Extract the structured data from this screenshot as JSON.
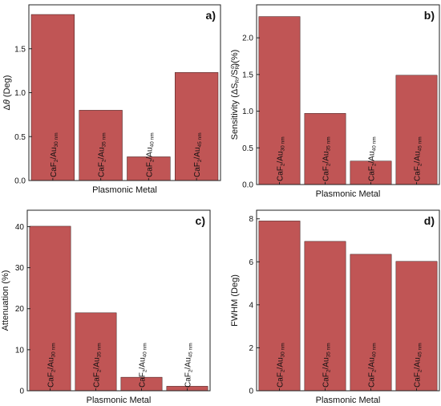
{
  "chart_data": [
    {
      "panel": "a)",
      "type": "bar",
      "categories": [
        "CaF₂/Au 30 nm",
        "CaF₂/Au 35 nm",
        "CaF₂/Au 40 nm",
        "CaF₂/Au 45 nm"
      ],
      "category_parts": [
        {
          "main": "CaF",
          "sub1": "2",
          "mid": "/Au",
          "sub2": "30 nm"
        },
        {
          "main": "CaF",
          "sub1": "2",
          "mid": "/Au",
          "sub2": "35 nm"
        },
        {
          "main": "CaF",
          "sub1": "2",
          "mid": "/Au",
          "sub2": "40 nm"
        },
        {
          "main": "CaF",
          "sub1": "2",
          "mid": "/Au",
          "sub2": "45 nm"
        }
      ],
      "values": [
        1.89,
        0.8,
        0.27,
        1.23
      ],
      "xlabel": "Plasmonic Metal",
      "ylabel": "Δθ (Deg)",
      "ylim": [
        0,
        2.0
      ],
      "yticks": [
        0.0,
        0.5,
        1.0,
        1.5
      ],
      "ytick_labels": [
        "0.0",
        "0.5",
        "1.0",
        "1.5"
      ],
      "bar_color": "#c05555",
      "grid": false
    },
    {
      "panel": "b)",
      "type": "bar",
      "categories": [
        "CaF₂/Au 30 nm",
        "CaF₂/Au 35 nm",
        "CaF₂/Au 40 nm",
        "CaF₂/Au 45 nm"
      ],
      "category_parts": [
        {
          "main": "CaF",
          "sub1": "2",
          "mid": "/Au",
          "sub2": "30 nm"
        },
        {
          "main": "CaF",
          "sub1": "2",
          "mid": "/Au",
          "sub2": "35 nm"
        },
        {
          "main": "CaF",
          "sub1": "2",
          "mid": "/Au",
          "sub2": "40 nm"
        },
        {
          "main": "CaF",
          "sub1": "2",
          "mid": "/Au",
          "sub2": "45 nm"
        }
      ],
      "values": [
        2.29,
        0.97,
        0.32,
        1.49
      ],
      "xlabel": "Plasmonic Metal",
      "ylabel": "Sensitivity (ΔS_RI/S_RI^d)(%)",
      "ylim": [
        0,
        2.45
      ],
      "yticks": [
        0.0,
        0.5,
        1.0,
        1.5,
        2.0
      ],
      "ytick_labels": [
        "0.0",
        "0.5",
        "1.0",
        "1.5",
        "2.0"
      ],
      "bar_color": "#c05555",
      "grid": false
    },
    {
      "panel": "c)",
      "type": "bar",
      "categories": [
        "CaF₂/Au 30 nm",
        "CaF₂/Au 35 nm",
        "CaF₂/Au 40 nm",
        "CaF₂/Au 45 nm"
      ],
      "category_parts": [
        {
          "main": "CaF",
          "sub1": "2",
          "mid": "/Au",
          "sub2": "30 nm"
        },
        {
          "main": "CaF",
          "sub1": "2",
          "mid": "/Au",
          "sub2": "35 nm"
        },
        {
          "main": "CaF",
          "sub1": "2",
          "mid": "/Au",
          "sub2": "40 nm"
        },
        {
          "main": "CaF",
          "sub1": "2",
          "mid": "/Au",
          "sub2": "45 nm"
        }
      ],
      "values": [
        40.1,
        19.0,
        3.3,
        1.1
      ],
      "xlabel": "Plasmonic Metal",
      "ylabel": "Attenuation (%)",
      "ylim": [
        0,
        44
      ],
      "yticks": [
        0,
        10,
        20,
        30,
        40
      ],
      "ytick_labels": [
        "0",
        "10",
        "20",
        "30",
        "40"
      ],
      "bar_color": "#c05555",
      "grid": false
    },
    {
      "panel": "d)",
      "type": "bar",
      "categories": [
        "CaF₂/Au 30 nm",
        "CaF₂/Au 35 nm",
        "CaF₂/Au 40 nm",
        "CaF₂/Au 45 nm"
      ],
      "category_parts": [
        {
          "main": "CaF",
          "sub1": "2",
          "mid": "/Au",
          "sub2": "30 nm"
        },
        {
          "main": "CaF",
          "sub1": "2",
          "mid": "/Au",
          "sub2": "35 nm"
        },
        {
          "main": "CaF",
          "sub1": "2",
          "mid": "/Au",
          "sub2": "40 nm"
        },
        {
          "main": "CaF",
          "sub1": "2",
          "mid": "/Au",
          "sub2": "45 nm"
        }
      ],
      "values": [
        7.9,
        6.95,
        6.35,
        6.02
      ],
      "xlabel": "Plasmonic Metal",
      "ylabel": "FWHM (Deg)",
      "ylim": [
        0,
        8.4
      ],
      "yticks": [
        0,
        2,
        4,
        6,
        8
      ],
      "ytick_labels": [
        "0",
        "2",
        "4",
        "6",
        "8"
      ],
      "bar_color": "#c05555",
      "grid": false
    }
  ]
}
